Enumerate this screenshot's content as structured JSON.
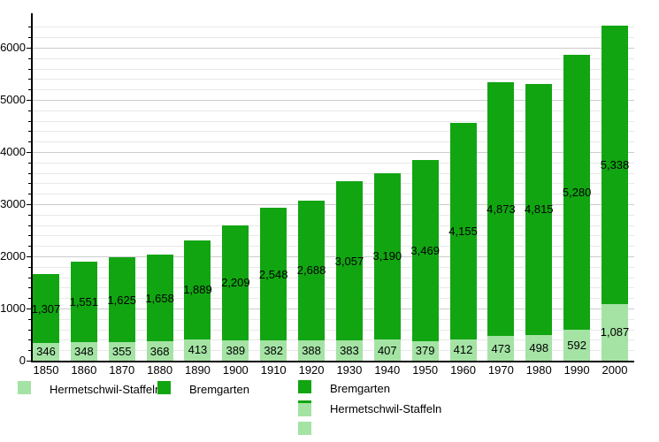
{
  "chart_data": {
    "type": "bar",
    "stacked": true,
    "title": "",
    "xlabel": "",
    "ylabel": "",
    "categories": [
      "1850",
      "1860",
      "1870",
      "1880",
      "1890",
      "1900",
      "1910",
      "1920",
      "1930",
      "1940",
      "1950",
      "1960",
      "1970",
      "1980",
      "1990",
      "2000"
    ],
    "series": [
      {
        "name": "Hermetschwil-Staffeln",
        "color": "#A4E3A4",
        "values": [
          346,
          348,
          355,
          368,
          413,
          389,
          382,
          388,
          383,
          407,
          379,
          412,
          473,
          498,
          592,
          1087
        ],
        "value_labels": [
          "346",
          "348",
          "355",
          "368",
          "413",
          "389",
          "382",
          "388",
          "383",
          "407",
          "379",
          "412",
          "473",
          "498",
          "592",
          "1,087"
        ]
      },
      {
        "name": "Bremgarten",
        "color": "#12A512",
        "values": [
          1307,
          1551,
          1625,
          1658,
          1889,
          2209,
          2548,
          2688,
          3057,
          3190,
          3469,
          4155,
          4873,
          4815,
          5280,
          5338
        ],
        "value_labels": [
          "1,307",
          "1,551",
          "1,625",
          "1,658",
          "1,889",
          "2,209",
          "2,548",
          "2,688",
          "3,057",
          "3,190",
          "3,469",
          "4,155",
          "4,873",
          "4,815",
          "5,280",
          "5,338"
        ]
      }
    ],
    "y_axis": {
      "tick_labels": [
        "0",
        "1000",
        "2000",
        "3000",
        "4000",
        "5000",
        "6000"
      ],
      "tick_values": [
        0,
        1000,
        2000,
        3000,
        4000,
        5000,
        6000
      ],
      "minor_step": 200,
      "minor_max": 6400,
      "ylim": [
        0,
        6650
      ]
    },
    "grid": true,
    "legend_position": "bottom"
  },
  "legend_bottom": {
    "items": [
      {
        "label": "Hermetschwil-Staffeln",
        "swatch": "light"
      },
      {
        "label": "Bremgarten",
        "swatch": "dark"
      }
    ]
  },
  "legend_block": {
    "items": [
      {
        "label": "Bremgarten",
        "swatch": "dark"
      },
      {
        "label": "Hermetschwil-Staffeln",
        "swatch": "light_capped"
      },
      {
        "label": "",
        "swatch": "light"
      }
    ]
  },
  "colors": {
    "bremgarten": "#12A512",
    "hermetschwil": "#A4E3A4",
    "grid_minor": "#e8e8e8",
    "grid_major": "#cccccc",
    "axis": "#000000",
    "text": "#000000"
  }
}
